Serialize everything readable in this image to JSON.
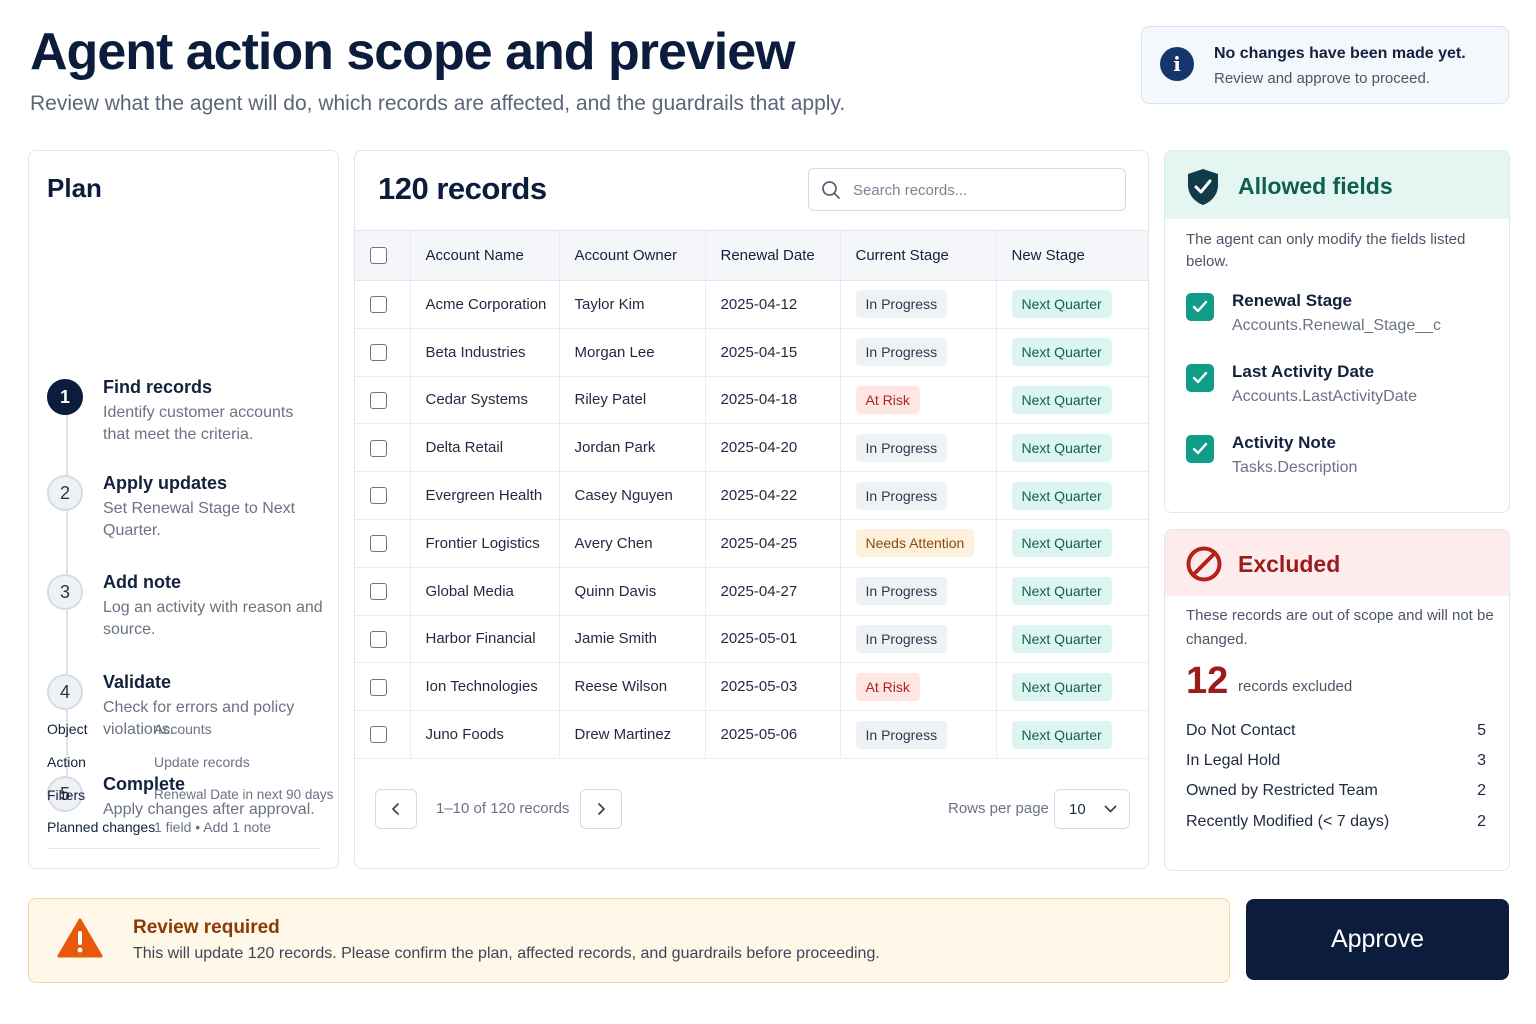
{
  "header": {
    "title": "Agent action scope and preview",
    "subtitle": "Review what the agent will do, which records are affected, and the guardrails that apply."
  },
  "notice": {
    "icon": "info-icon",
    "title": "No changes have been made yet.",
    "subtitle": "Review and approve to proceed."
  },
  "plan": {
    "title": "Plan",
    "steps": [
      {
        "number": "1",
        "title": "Find records",
        "description": "Identify customer accounts that meet the criteria.",
        "active": true
      },
      {
        "number": "2",
        "title": "Apply updates",
        "description": "Set Renewal Stage to Next Quarter.",
        "active": false
      },
      {
        "number": "3",
        "title": "Add note",
        "description": "Log an activity with reason and source.",
        "active": false
      },
      {
        "number": "4",
        "title": "Validate",
        "description": "Check for errors and policy violations.",
        "active": false
      },
      {
        "number": "5",
        "title": "Complete",
        "description": "Apply changes after approval.",
        "active": false
      }
    ],
    "meta": {
      "object_label": "Object",
      "object_value": "Accounts",
      "action_label": "Action",
      "action_value": "Update records",
      "filters_label": "Filters",
      "filters_value": "Renewal Date in next 90 days",
      "changes_label": "Planned changes",
      "changes_value": "1 field • Add 1 note"
    }
  },
  "records": {
    "title": "120 records",
    "search_placeholder": "Search records...",
    "columns": [
      "Account Name",
      "Account Owner",
      "Renewal Date",
      "Current Stage",
      "New Stage"
    ],
    "rows": [
      {
        "name": "Acme Corporation",
        "owner": "Taylor Kim",
        "date": "2025-04-12",
        "stage": "In Progress",
        "stage_kind": "inprogress",
        "new_stage": "Next Quarter"
      },
      {
        "name": "Beta Industries",
        "owner": "Morgan Lee",
        "date": "2025-04-15",
        "stage": "In Progress",
        "stage_kind": "inprogress",
        "new_stage": "Next Quarter"
      },
      {
        "name": "Cedar Systems",
        "owner": "Riley Patel",
        "date": "2025-04-18",
        "stage": "At Risk",
        "stage_kind": "atrisk",
        "new_stage": "Next Quarter"
      },
      {
        "name": "Delta Retail",
        "owner": "Jordan Park",
        "date": "2025-04-20",
        "stage": "In Progress",
        "stage_kind": "inprogress",
        "new_stage": "Next Quarter"
      },
      {
        "name": "Evergreen Health",
        "owner": "Casey Nguyen",
        "date": "2025-04-22",
        "stage": "In Progress",
        "stage_kind": "inprogress",
        "new_stage": "Next Quarter"
      },
      {
        "name": "Frontier Logistics",
        "owner": "Avery Chen",
        "date": "2025-04-25",
        "stage": "Needs Attention",
        "stage_kind": "attention",
        "new_stage": "Next Quarter"
      },
      {
        "name": "Global Media",
        "owner": "Quinn Davis",
        "date": "2025-04-27",
        "stage": "In Progress",
        "stage_kind": "inprogress",
        "new_stage": "Next Quarter"
      },
      {
        "name": "Harbor Financial",
        "owner": "Jamie Smith",
        "date": "2025-05-01",
        "stage": "In Progress",
        "stage_kind": "inprogress",
        "new_stage": "Next Quarter"
      },
      {
        "name": "Ion Technologies",
        "owner": "Reese Wilson",
        "date": "2025-05-03",
        "stage": "At Risk",
        "stage_kind": "atrisk",
        "new_stage": "Next Quarter"
      },
      {
        "name": "Juno Foods",
        "owner": "Drew Martinez",
        "date": "2025-05-06",
        "stage": "In Progress",
        "stage_kind": "inprogress",
        "new_stage": "Next Quarter"
      }
    ],
    "pagination": {
      "range_text": "1–10 of 120 records",
      "rows_per_page_label": "Rows per page",
      "rows_per_page_value": "10"
    }
  },
  "allowed": {
    "title": "Allowed fields",
    "description": "The agent can only modify the fields listed below.",
    "fields": [
      {
        "name": "Renewal Stage",
        "path": "Accounts.Renewal_Stage__c"
      },
      {
        "name": "Last Activity Date",
        "path": "Accounts.LastActivityDate"
      },
      {
        "name": "Activity Note",
        "path": "Tasks.Description"
      }
    ]
  },
  "excluded": {
    "title": "Excluded",
    "description": "These records are out of scope and will not be changed.",
    "count": "12",
    "count_label": "records excluded",
    "reasons": [
      {
        "label": "Do Not Contact",
        "count": "5"
      },
      {
        "label": "In Legal Hold",
        "count": "3"
      },
      {
        "label": "Owned by Restricted Team",
        "count": "2"
      },
      {
        "label": "Recently Modified (< 7 days)",
        "count": "2"
      }
    ]
  },
  "footer": {
    "review_title": "Review required",
    "review_text": "This will update 120 records. Please confirm the plan, affected records, and guardrails before proceeding.",
    "approve_label": "Approve"
  },
  "colors": {
    "navy": "#0c1c3c",
    "teal": "#0f9d88",
    "danger": "#9b1c1c",
    "warning": "#e8590c"
  }
}
